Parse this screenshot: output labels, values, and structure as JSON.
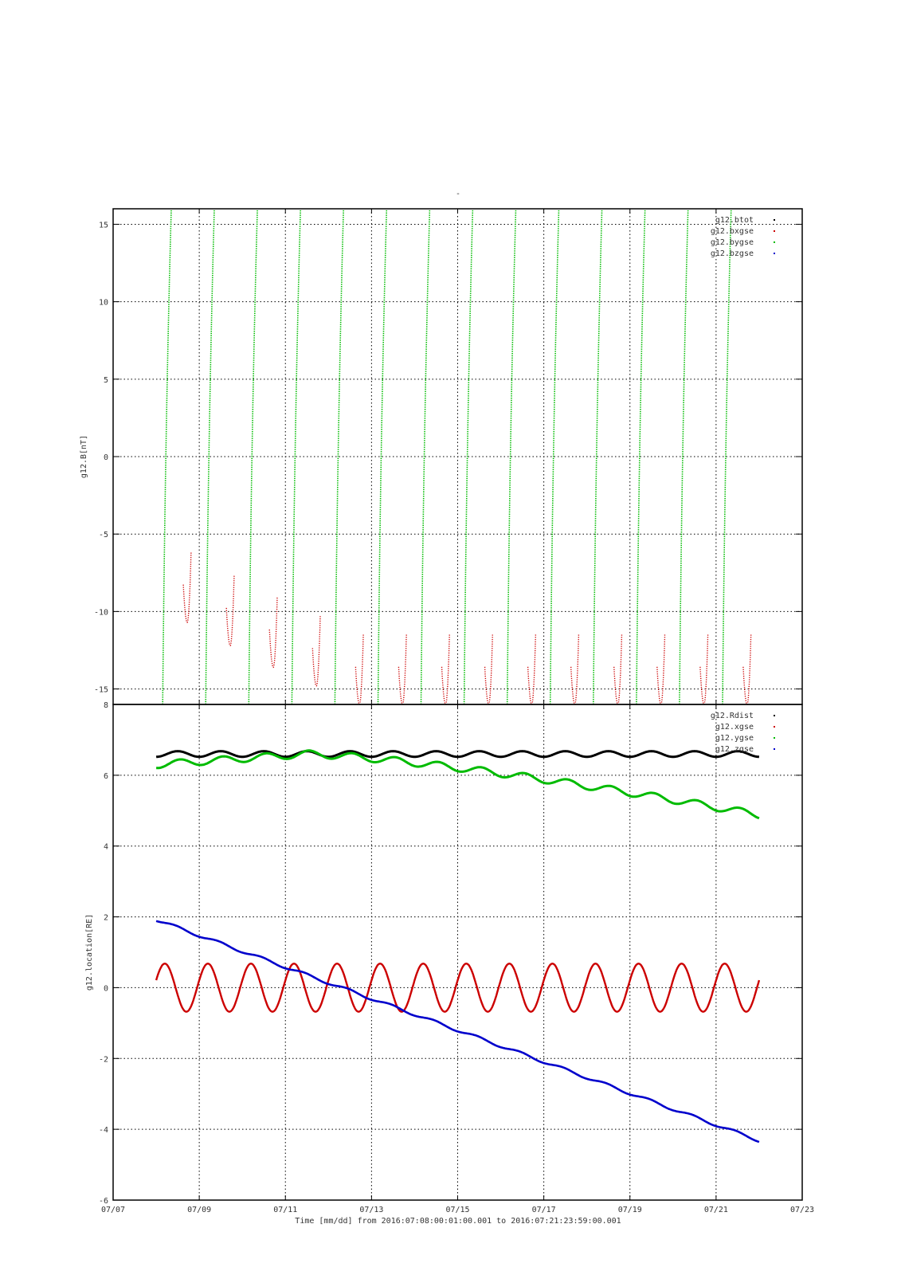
{
  "figure": {
    "title": "-",
    "xlabel": "Time [mm/dd]  from 2016:07:08:00:01:00.001  to  2016:07:21:23:59:00.001"
  },
  "chart_data": [
    {
      "type": "line",
      "panel": "top",
      "ylabel": "g12.B[nT]",
      "xlim": [
        0,
        16
      ],
      "ylim": [
        -16,
        16
      ],
      "yticks": [
        -15,
        -10,
        -5,
        0,
        5,
        10,
        15
      ],
      "xticks": [
        "07/07",
        "07/09",
        "07/11",
        "07/13",
        "07/15",
        "07/17",
        "07/19",
        "07/21",
        "07/23"
      ],
      "grid": true,
      "legend": "top-right",
      "legend_entries": [
        "g12.btot",
        "g12.bxgse",
        "g12.bygse",
        "g12.bzgse"
      ],
      "series": [
        {
          "name": "g12.btot",
          "color": "#000000",
          "values": []
        },
        {
          "name": "g12.bxgse",
          "color": "#cc0000",
          "period_days": 1.0,
          "trough_days": [
            1.72,
            2.72,
            3.72,
            4.72,
            5.72,
            6.72,
            7.72,
            8.72,
            9.72,
            10.72,
            11.72,
            12.72,
            13.72,
            14.72
          ],
          "trough_values": [
            -10.7,
            -12.2,
            -13.6,
            -14.8,
            -16,
            -16,
            -16,
            -16,
            -16,
            -16,
            -16,
            -16,
            -16,
            -16
          ]
        },
        {
          "name": "g12.bygse",
          "color": "#00bb00",
          "period_days": 1.0,
          "crossing_days_at_minus16": [
            1.15,
            2.15,
            3.15,
            4.15,
            5.15,
            6.15,
            7.15,
            8.15,
            9.15,
            10.15,
            11.15,
            12.15,
            13.15,
            14.15
          ]
        },
        {
          "name": "g12.bzgse",
          "color": "#0000cc",
          "values": []
        }
      ]
    },
    {
      "type": "line",
      "panel": "bottom",
      "ylabel": "g12.location[RE]",
      "xlim": [
        0,
        16
      ],
      "ylim": [
        -6,
        8
      ],
      "yticks": [
        -6,
        -4,
        -2,
        0,
        2,
        4,
        6,
        8
      ],
      "xticks": [
        "07/07",
        "07/09",
        "07/11",
        "07/13",
        "07/15",
        "07/17",
        "07/19",
        "07/21",
        "07/23"
      ],
      "grid": true,
      "legend": "top-right",
      "legend_entries": [
        "g12.Rdist",
        "g12.xgse",
        "g12.ygse",
        "g12.zgse"
      ],
      "x_range_days": [
        1.0,
        15.0
      ],
      "series": [
        {
          "name": "g12.Rdist",
          "color": "#000000",
          "mean": 6.6,
          "amplitude": 0.08
        },
        {
          "name": "g12.xgse",
          "color": "#cc0000",
          "mean": 0.0,
          "amplitude": 0.68
        },
        {
          "name": "g12.ygse",
          "color": "#00bb00",
          "start": 6.3,
          "peak": 6.6,
          "end": 4.88
        },
        {
          "name": "g12.zgse",
          "color": "#0000cc",
          "start": 1.92,
          "end": -4.32
        }
      ]
    }
  ]
}
